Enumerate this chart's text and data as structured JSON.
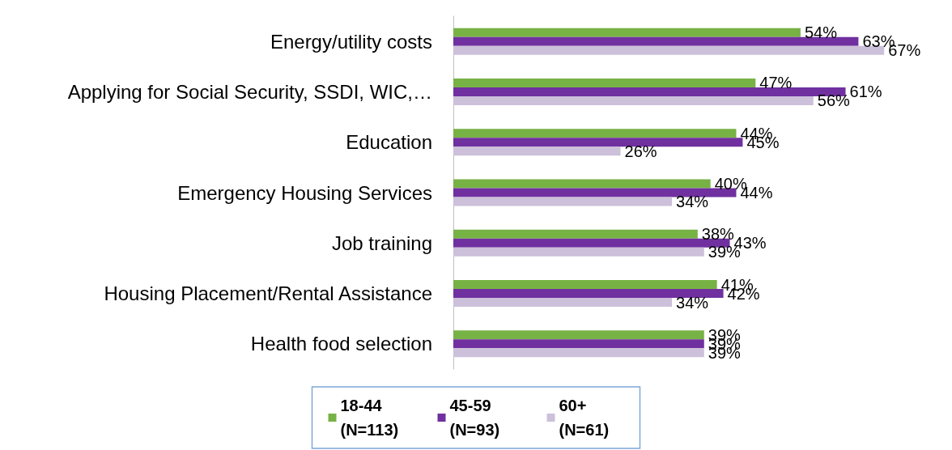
{
  "chart_data": {
    "type": "bar",
    "orientation": "horizontal",
    "categories": [
      "Energy/utility costs",
      "Applying for Social Security, SSDI, WIC,…",
      "Education",
      "Emergency Housing Services",
      "Job training",
      "Housing Placement/Rental Assistance",
      "Health food selection"
    ],
    "series": [
      {
        "name": "18-44 (N=113)",
        "color": "#77b245",
        "values": [
          54,
          47,
          44,
          40,
          38,
          41,
          39
        ],
        "value_labels": [
          "54%",
          "47%",
          "44%",
          "40%",
          "38%",
          "41%",
          "39%"
        ]
      },
      {
        "name": "45-59 (N=93)",
        "color": "#7030a0",
        "values": [
          63,
          61,
          45,
          44,
          43,
          42,
          39
        ],
        "value_labels": [
          "63%",
          "61%",
          "45%",
          "44%",
          "43%",
          "42%",
          "39%"
        ]
      },
      {
        "name": "60+ (N=61)",
        "color": "#ccc0da",
        "values": [
          67,
          56,
          26,
          34,
          39,
          34,
          39
        ],
        "value_labels": [
          "67%",
          "56%",
          "26%",
          "34%",
          "39%",
          "34%",
          "39%"
        ]
      }
    ],
    "tick_labels": "y",
    "grid": false,
    "legend": "bottom"
  }
}
